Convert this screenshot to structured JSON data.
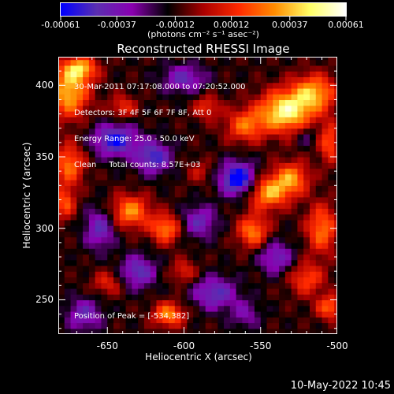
{
  "colorbar": {
    "tick_labels": [
      "-0.00061",
      "-0.00037",
      "-0.00012",
      "0.00012",
      "0.00037",
      "0.00061"
    ],
    "tick_values": [
      -0.00061,
      -0.00037,
      -0.00012,
      0.00012,
      0.00037,
      0.00061
    ],
    "range": [
      -0.00061,
      0.00061
    ],
    "units": "(photons cm⁻² s⁻¹ asec⁻²)",
    "colors": [
      "#0000ff",
      "#5b2fb0",
      "#8a00b0",
      "#000000",
      "#aa0000",
      "#ff2a00",
      "#ff8c00",
      "#ffff66",
      "#ffffff"
    ]
  },
  "chart_data": {
    "type": "heatmap",
    "title": "Reconstructed RHESSI Image",
    "xlabel": "Heliocentric X (arcsec)",
    "ylabel": "Heliocentric Y (arcsec)",
    "xlim": [
      -682,
      -500
    ],
    "ylim": [
      226,
      420
    ],
    "x_ticks": [
      -650,
      -600,
      -550,
      -500
    ],
    "x_tick_labels": [
      "-650",
      "-600",
      "-550",
      "-500"
    ],
    "y_ticks": [
      250,
      300,
      350,
      400
    ],
    "y_tick_labels": [
      "250",
      "300",
      "350",
      "400"
    ],
    "annotations": [
      "30-Mar-2011 07:17:08.000 to 07:20:52.000",
      "Detectors: 3F 4F 5F 6F 7F 8F, Att 0",
      "Energy Range: 25.0 - 50.0 keV",
      "Clean     Total counts: 8.57E+03"
    ],
    "peak_label": "Position of Peak = [-534,382]",
    "peak": [
      -534,
      382
    ],
    "sources": [
      {
        "x": -534,
        "y": 382,
        "amp": 0.00061,
        "sx": 12,
        "sy": 10
      },
      {
        "x": -515,
        "y": 395,
        "amp": 0.00045,
        "sx": 10,
        "sy": 9
      },
      {
        "x": -560,
        "y": 372,
        "amp": 0.00035,
        "sx": 9,
        "sy": 8
      },
      {
        "x": -675,
        "y": 395,
        "amp": 0.0005,
        "sx": 9,
        "sy": 12
      },
      {
        "x": -668,
        "y": 412,
        "amp": 0.00045,
        "sx": 8,
        "sy": 6
      },
      {
        "x": -640,
        "y": 385,
        "amp": 0.00025,
        "sx": 6,
        "sy": 6
      },
      {
        "x": -675,
        "y": 345,
        "amp": 0.00038,
        "sx": 7,
        "sy": 10
      },
      {
        "x": -678,
        "y": 318,
        "amp": 0.00032,
        "sx": 5,
        "sy": 8
      },
      {
        "x": -635,
        "y": 312,
        "amp": 0.00042,
        "sx": 9,
        "sy": 8
      },
      {
        "x": -612,
        "y": 300,
        "amp": 0.0004,
        "sx": 7,
        "sy": 7
      },
      {
        "x": -545,
        "y": 325,
        "amp": 0.00045,
        "sx": 9,
        "sy": 8
      },
      {
        "x": -530,
        "y": 335,
        "amp": 0.00042,
        "sx": 8,
        "sy": 8
      },
      {
        "x": -555,
        "y": 298,
        "amp": 0.0004,
        "sx": 7,
        "sy": 8
      },
      {
        "x": -510,
        "y": 300,
        "amp": 0.00038,
        "sx": 7,
        "sy": 12
      },
      {
        "x": -520,
        "y": 265,
        "amp": 0.0003,
        "sx": 8,
        "sy": 8
      },
      {
        "x": -585,
        "y": 385,
        "amp": 0.00025,
        "sx": 6,
        "sy": 6
      },
      {
        "x": -650,
        "y": 262,
        "amp": 0.00022,
        "sx": 7,
        "sy": 6
      },
      {
        "x": -610,
        "y": 240,
        "amp": 0.00042,
        "sx": 7,
        "sy": 6
      },
      {
        "x": -505,
        "y": 245,
        "amp": 0.00035,
        "sx": 6,
        "sy": 6
      },
      {
        "x": -505,
        "y": 360,
        "amp": 0.00032,
        "sx": 5,
        "sy": 10
      },
      {
        "x": -590,
        "y": 340,
        "amp": 0.00015,
        "sx": 6,
        "sy": 6
      },
      {
        "x": -600,
        "y": 270,
        "amp": 0.00022,
        "sx": 6,
        "sy": 6
      },
      {
        "x": -565,
        "y": 335,
        "amp": -0.00055,
        "sx": 8,
        "sy": 8
      },
      {
        "x": -645,
        "y": 362,
        "amp": -0.00045,
        "sx": 10,
        "sy": 8
      },
      {
        "x": -620,
        "y": 350,
        "amp": -0.0004,
        "sx": 8,
        "sy": 8
      },
      {
        "x": -630,
        "y": 270,
        "amp": -0.00035,
        "sx": 8,
        "sy": 8
      },
      {
        "x": -580,
        "y": 255,
        "amp": -0.00035,
        "sx": 10,
        "sy": 8
      },
      {
        "x": -590,
        "y": 305,
        "amp": -0.0003,
        "sx": 8,
        "sy": 8
      },
      {
        "x": -655,
        "y": 300,
        "amp": -0.00032,
        "sx": 7,
        "sy": 10
      },
      {
        "x": -540,
        "y": 280,
        "amp": -0.0003,
        "sx": 8,
        "sy": 8
      },
      {
        "x": -560,
        "y": 240,
        "amp": -0.0002,
        "sx": 7,
        "sy": 7
      },
      {
        "x": -600,
        "y": 405,
        "amp": -0.0003,
        "sx": 10,
        "sy": 7
      },
      {
        "x": -665,
        "y": 240,
        "amp": -0.0003,
        "sx": 8,
        "sy": 8
      },
      {
        "x": -520,
        "y": 365,
        "amp": -0.00015,
        "sx": 5,
        "sy": 5
      }
    ]
  },
  "timestamp": "10-May-2022 10:45"
}
